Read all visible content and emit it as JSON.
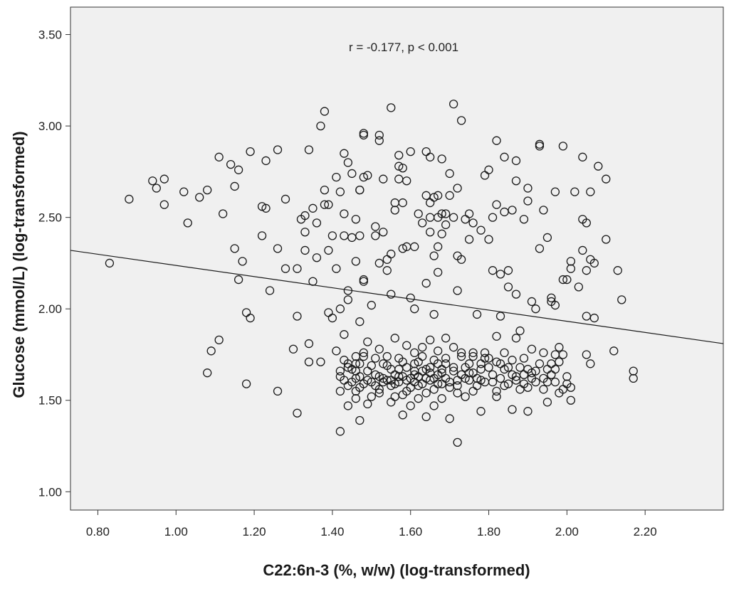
{
  "chart_data": {
    "type": "scatter",
    "xlabel": "C22:6n-3 (%, w/w) (log-transformed)",
    "ylabel": "Glucose (mmol/L) (log-transformed)",
    "annotation": "r = -0.177, p < 0.001",
    "xlim": [
      0.73,
      2.4
    ],
    "ylim": [
      0.9,
      3.65
    ],
    "x_ticks": [
      "0.80",
      "1.00",
      "1.20",
      "1.40",
      "1.60",
      "1.80",
      "2.00",
      "2.20"
    ],
    "y_ticks": [
      "1.00",
      "1.50",
      "2.00",
      "2.50",
      "3.00",
      "3.50"
    ],
    "grid": false,
    "marker": "open-circle",
    "regression_line": {
      "x": [
        0.73,
        2.4
      ],
      "y": [
        2.32,
        1.81
      ]
    },
    "points": [
      [
        0.83,
        2.25
      ],
      [
        0.88,
        2.6
      ],
      [
        0.94,
        2.7
      ],
      [
        0.95,
        2.66
      ],
      [
        0.97,
        2.57
      ],
      [
        0.97,
        2.71
      ],
      [
        1.02,
        2.64
      ],
      [
        1.03,
        2.47
      ],
      [
        1.06,
        2.61
      ],
      [
        1.08,
        2.65
      ],
      [
        1.08,
        1.65
      ],
      [
        1.09,
        1.77
      ],
      [
        1.11,
        1.83
      ],
      [
        1.11,
        2.83
      ],
      [
        1.12,
        2.52
      ],
      [
        1.14,
        2.79
      ],
      [
        1.15,
        2.67
      ],
      [
        1.15,
        2.33
      ],
      [
        1.16,
        2.16
      ],
      [
        1.16,
        2.76
      ],
      [
        1.17,
        2.26
      ],
      [
        1.18,
        1.59
      ],
      [
        1.18,
        1.98
      ],
      [
        1.19,
        1.95
      ],
      [
        1.19,
        2.86
      ],
      [
        1.22,
        2.56
      ],
      [
        1.22,
        2.4
      ],
      [
        1.23,
        2.55
      ],
      [
        1.23,
        2.81
      ],
      [
        1.24,
        2.1
      ],
      [
        1.26,
        2.87
      ],
      [
        1.26,
        2.33
      ],
      [
        1.26,
        1.55
      ],
      [
        1.28,
        2.6
      ],
      [
        1.28,
        2.22
      ],
      [
        1.3,
        1.78
      ],
      [
        1.31,
        1.43
      ],
      [
        1.31,
        1.96
      ],
      [
        1.31,
        2.22
      ],
      [
        1.32,
        2.49
      ],
      [
        1.33,
        2.51
      ],
      [
        1.33,
        2.42
      ],
      [
        1.33,
        2.32
      ],
      [
        1.34,
        2.87
      ],
      [
        1.34,
        1.81
      ],
      [
        1.34,
        1.71
      ],
      [
        1.35,
        2.15
      ],
      [
        1.35,
        2.55
      ],
      [
        1.36,
        2.47
      ],
      [
        1.36,
        2.28
      ],
      [
        1.37,
        3.0
      ],
      [
        1.37,
        1.71
      ],
      [
        1.38,
        3.08
      ],
      [
        1.38,
        2.65
      ],
      [
        1.38,
        2.57
      ],
      [
        1.39,
        2.57
      ],
      [
        1.39,
        2.32
      ],
      [
        1.39,
        1.98
      ],
      [
        1.4,
        1.95
      ],
      [
        1.4,
        2.4
      ],
      [
        1.41,
        2.22
      ],
      [
        1.41,
        2.72
      ],
      [
        1.42,
        2.64
      ],
      [
        1.42,
        2.0
      ],
      [
        1.43,
        2.52
      ],
      [
        1.43,
        2.4
      ],
      [
        1.43,
        2.85
      ],
      [
        1.44,
        2.8
      ],
      [
        1.44,
        2.05
      ],
      [
        1.44,
        2.1
      ],
      [
        1.45,
        2.74
      ],
      [
        1.45,
        2.39
      ],
      [
        1.46,
        2.26
      ],
      [
        1.46,
        2.49
      ],
      [
        1.46,
        1.7
      ],
      [
        1.47,
        2.65
      ],
      [
        1.47,
        2.65
      ],
      [
        1.47,
        2.4
      ],
      [
        1.47,
        1.93
      ],
      [
        1.48,
        2.16
      ],
      [
        1.48,
        2.15
      ],
      [
        1.48,
        2.72
      ],
      [
        1.48,
        2.95
      ],
      [
        1.48,
        2.96
      ],
      [
        1.49,
        2.73
      ],
      [
        1.5,
        2.02
      ],
      [
        1.51,
        2.45
      ],
      [
        1.51,
        2.4
      ],
      [
        1.52,
        2.95
      ],
      [
        1.52,
        2.92
      ],
      [
        1.52,
        2.25
      ],
      [
        1.53,
        2.42
      ],
      [
        1.53,
        2.71
      ],
      [
        1.54,
        2.21
      ],
      [
        1.54,
        2.27
      ],
      [
        1.55,
        2.3
      ],
      [
        1.55,
        2.08
      ],
      [
        1.55,
        3.1
      ],
      [
        1.56,
        2.54
      ],
      [
        1.56,
        2.58
      ],
      [
        1.57,
        2.78
      ],
      [
        1.57,
        2.71
      ],
      [
        1.57,
        2.84
      ],
      [
        1.58,
        2.58
      ],
      [
        1.58,
        2.33
      ],
      [
        1.58,
        2.77
      ],
      [
        1.59,
        2.7
      ],
      [
        1.59,
        2.34
      ],
      [
        1.6,
        2.86
      ],
      [
        1.6,
        2.06
      ],
      [
        1.61,
        2.0
      ],
      [
        1.61,
        2.34
      ],
      [
        1.62,
        2.52
      ],
      [
        1.63,
        2.47
      ],
      [
        1.64,
        2.14
      ],
      [
        1.64,
        2.62
      ],
      [
        1.64,
        2.86
      ],
      [
        1.65,
        2.5
      ],
      [
        1.65,
        2.58
      ],
      [
        1.65,
        2.42
      ],
      [
        1.65,
        2.83
      ],
      [
        1.66,
        2.61
      ],
      [
        1.66,
        2.29
      ],
      [
        1.66,
        1.97
      ],
      [
        1.67,
        2.62
      ],
      [
        1.67,
        2.2
      ],
      [
        1.67,
        2.5
      ],
      [
        1.67,
        2.34
      ],
      [
        1.68,
        2.41
      ],
      [
        1.68,
        2.52
      ],
      [
        1.68,
        2.82
      ],
      [
        1.69,
        2.46
      ],
      [
        1.69,
        2.52
      ],
      [
        1.7,
        2.62
      ],
      [
        1.7,
        2.74
      ],
      [
        1.71,
        2.5
      ],
      [
        1.71,
        3.12
      ],
      [
        1.72,
        2.1
      ],
      [
        1.72,
        2.66
      ],
      [
        1.72,
        2.29
      ],
      [
        1.73,
        2.27
      ],
      [
        1.73,
        3.03
      ],
      [
        1.74,
        2.49
      ],
      [
        1.75,
        2.52
      ],
      [
        1.75,
        2.38
      ],
      [
        1.76,
        2.47
      ],
      [
        1.77,
        1.97
      ],
      [
        1.78,
        2.43
      ],
      [
        1.79,
        2.73
      ],
      [
        1.8,
        2.38
      ],
      [
        1.8,
        2.76
      ],
      [
        1.81,
        2.5
      ],
      [
        1.81,
        2.21
      ],
      [
        1.82,
        2.92
      ],
      [
        1.82,
        2.57
      ],
      [
        1.83,
        1.96
      ],
      [
        1.83,
        2.19
      ],
      [
        1.84,
        2.83
      ],
      [
        1.84,
        2.53
      ],
      [
        1.85,
        2.21
      ],
      [
        1.85,
        2.12
      ],
      [
        1.86,
        2.54
      ],
      [
        1.87,
        2.81
      ],
      [
        1.87,
        2.7
      ],
      [
        1.87,
        2.08
      ],
      [
        1.88,
        1.88
      ],
      [
        1.89,
        2.49
      ],
      [
        1.9,
        2.66
      ],
      [
        1.9,
        2.59
      ],
      [
        1.91,
        2.04
      ],
      [
        1.92,
        2.0
      ],
      [
        1.93,
        2.9
      ],
      [
        1.93,
        2.89
      ],
      [
        1.93,
        2.33
      ],
      [
        1.94,
        2.54
      ],
      [
        1.95,
        2.39
      ],
      [
        1.96,
        2.06
      ],
      [
        1.96,
        2.04
      ],
      [
        1.97,
        2.02
      ],
      [
        1.97,
        2.64
      ],
      [
        1.99,
        2.89
      ],
      [
        1.99,
        2.16
      ],
      [
        2.0,
        2.16
      ],
      [
        2.01,
        2.22
      ],
      [
        2.01,
        2.26
      ],
      [
        2.02,
        2.64
      ],
      [
        2.03,
        2.12
      ],
      [
        2.04,
        2.49
      ],
      [
        2.04,
        2.83
      ],
      [
        2.04,
        2.32
      ],
      [
        2.05,
        2.47
      ],
      [
        2.05,
        2.21
      ],
      [
        2.05,
        1.96
      ],
      [
        2.06,
        2.64
      ],
      [
        2.06,
        2.27
      ],
      [
        2.07,
        2.25
      ],
      [
        2.07,
        1.95
      ],
      [
        2.08,
        2.78
      ],
      [
        2.1,
        2.38
      ],
      [
        2.1,
        2.71
      ],
      [
        2.12,
        1.77
      ],
      [
        2.13,
        2.21
      ],
      [
        2.14,
        2.05
      ],
      [
        2.17,
        1.66
      ],
      [
        2.17,
        1.62
      ],
      [
        2.05,
        1.75
      ],
      [
        2.06,
        1.7
      ],
      [
        2.01,
        1.57
      ],
      [
        2.0,
        1.59
      ],
      [
        1.98,
        1.71
      ],
      [
        1.98,
        1.79
      ],
      [
        1.97,
        1.67
      ],
      [
        1.96,
        1.7
      ],
      [
        1.95,
        1.6
      ],
      [
        1.94,
        1.56
      ],
      [
        1.92,
        1.66
      ],
      [
        1.91,
        1.62
      ],
      [
        1.9,
        1.67
      ],
      [
        1.89,
        1.59
      ],
      [
        1.88,
        1.68
      ],
      [
        1.87,
        1.61
      ],
      [
        1.86,
        1.64
      ],
      [
        1.85,
        1.68
      ],
      [
        1.84,
        1.58
      ],
      [
        1.83,
        1.7
      ],
      [
        1.82,
        1.55
      ],
      [
        1.81,
        1.6
      ],
      [
        1.8,
        1.68
      ],
      [
        1.79,
        1.76
      ],
      [
        1.78,
        1.67
      ],
      [
        1.77,
        1.58
      ],
      [
        1.76,
        1.65
      ],
      [
        1.75,
        1.7
      ],
      [
        1.74,
        1.62
      ],
      [
        1.73,
        1.74
      ],
      [
        1.72,
        1.61
      ],
      [
        1.71,
        1.68
      ],
      [
        1.7,
        1.57
      ],
      [
        1.69,
        1.73
      ],
      [
        1.68,
        1.65
      ],
      [
        1.67,
        1.7
      ],
      [
        1.66,
        1.56
      ],
      [
        1.65,
        1.68
      ],
      [
        1.64,
        1.62
      ],
      [
        1.63,
        1.74
      ],
      [
        1.62,
        1.58
      ],
      [
        1.61,
        1.66
      ],
      [
        1.6,
        1.62
      ],
      [
        1.59,
        1.55
      ],
      [
        1.58,
        1.71
      ],
      [
        1.57,
        1.6
      ],
      [
        1.56,
        1.64
      ],
      [
        1.55,
        1.58
      ],
      [
        1.54,
        1.69
      ],
      [
        1.53,
        1.62
      ],
      [
        1.52,
        1.56
      ],
      [
        1.51,
        1.73
      ],
      [
        1.5,
        1.6
      ],
      [
        1.49,
        1.66
      ],
      [
        1.48,
        1.59
      ],
      [
        1.47,
        1.7
      ],
      [
        1.46,
        1.62
      ],
      [
        1.45,
        1.67
      ],
      [
        1.44,
        1.58
      ],
      [
        1.43,
        1.72
      ],
      [
        1.42,
        1.63
      ],
      [
        1.71,
        1.66
      ],
      [
        1.7,
        1.6
      ],
      [
        1.69,
        1.7
      ],
      [
        1.68,
        1.59
      ],
      [
        1.67,
        1.64
      ],
      [
        1.66,
        1.72
      ],
      [
        1.65,
        1.61
      ],
      [
        1.64,
        1.67
      ],
      [
        1.63,
        1.59
      ],
      [
        1.62,
        1.71
      ],
      [
        1.61,
        1.64
      ],
      [
        1.6,
        1.57
      ],
      [
        1.59,
        1.68
      ],
      [
        1.58,
        1.63
      ],
      [
        1.57,
        1.73
      ],
      [
        1.56,
        1.59
      ],
      [
        1.55,
        1.67
      ],
      [
        1.54,
        1.61
      ],
      [
        1.53,
        1.7
      ],
      [
        1.52,
        1.63
      ],
      [
        1.51,
        1.58
      ],
      [
        1.5,
        1.69
      ],
      [
        1.49,
        1.61
      ],
      [
        1.48,
        1.74
      ],
      [
        1.47,
        1.57
      ],
      [
        1.46,
        1.66
      ],
      [
        1.45,
        1.6
      ],
      [
        1.44,
        1.68
      ],
      [
        1.43,
        1.61
      ],
      [
        1.42,
        1.66
      ],
      [
        1.74,
        1.68
      ],
      [
        1.75,
        1.61
      ],
      [
        1.76,
        1.74
      ],
      [
        1.77,
        1.62
      ],
      [
        1.78,
        1.7
      ],
      [
        1.79,
        1.6
      ],
      [
        1.8,
        1.73
      ],
      [
        1.81,
        1.64
      ],
      [
        1.82,
        1.71
      ],
      [
        1.83,
        1.62
      ],
      [
        1.84,
        1.67
      ],
      [
        1.85,
        1.59
      ],
      [
        1.86,
        1.72
      ],
      [
        1.87,
        1.63
      ],
      [
        1.88,
        1.56
      ],
      [
        1.89,
        1.64
      ],
      [
        1.9,
        1.57
      ],
      [
        1.91,
        1.65
      ],
      [
        1.92,
        1.6
      ],
      [
        1.93,
        1.7
      ],
      [
        1.94,
        1.62
      ],
      [
        1.95,
        1.67
      ],
      [
        1.96,
        1.64
      ],
      [
        1.97,
        1.6
      ],
      [
        1.98,
        1.54
      ],
      [
        1.99,
        1.56
      ],
      [
        2.0,
        1.63
      ],
      [
        2.01,
        1.5
      ],
      [
        1.7,
        1.4
      ],
      [
        1.72,
        1.27
      ],
      [
        1.42,
        1.33
      ],
      [
        1.47,
        1.39
      ],
      [
        1.58,
        1.42
      ],
      [
        1.64,
        1.41
      ],
      [
        1.9,
        1.44
      ],
      [
        1.78,
        1.44
      ],
      [
        1.44,
        1.47
      ],
      [
        1.49,
        1.48
      ],
      [
        1.55,
        1.49
      ],
      [
        1.6,
        1.47
      ],
      [
        1.66,
        1.47
      ],
      [
        1.86,
        1.45
      ],
      [
        1.82,
        1.52
      ],
      [
        1.74,
        1.52
      ],
      [
        1.68,
        1.51
      ],
      [
        1.62,
        1.51
      ],
      [
        1.56,
        1.52
      ],
      [
        1.5,
        1.52
      ],
      [
        1.46,
        1.51
      ],
      [
        1.95,
        1.49
      ],
      [
        1.76,
        1.55
      ],
      [
        1.72,
        1.54
      ],
      [
        1.64,
        1.54
      ],
      [
        1.58,
        1.53
      ],
      [
        1.52,
        1.54
      ],
      [
        1.46,
        1.55
      ],
      [
        1.42,
        1.55
      ],
      [
        1.41,
        1.77
      ],
      [
        1.43,
        1.86
      ],
      [
        1.44,
        1.7
      ],
      [
        1.46,
        1.74
      ],
      [
        1.48,
        1.76
      ],
      [
        1.49,
        1.82
      ],
      [
        1.52,
        1.78
      ],
      [
        1.54,
        1.74
      ],
      [
        1.56,
        1.84
      ],
      [
        1.59,
        1.8
      ],
      [
        1.61,
        1.76
      ],
      [
        1.63,
        1.79
      ],
      [
        1.65,
        1.83
      ],
      [
        1.67,
        1.77
      ],
      [
        1.69,
        1.84
      ],
      [
        1.71,
        1.79
      ],
      [
        1.73,
        1.76
      ],
      [
        1.76,
        1.76
      ],
      [
        1.79,
        1.73
      ],
      [
        1.82,
        1.85
      ],
      [
        1.84,
        1.76
      ],
      [
        1.87,
        1.84
      ],
      [
        1.89,
        1.73
      ],
      [
        1.91,
        1.78
      ],
      [
        1.94,
        1.76
      ],
      [
        1.97,
        1.75
      ],
      [
        1.99,
        1.75
      ],
      [
        1.53,
        1.6
      ],
      [
        1.57,
        1.63
      ],
      [
        1.61,
        1.6
      ],
      [
        1.65,
        1.65
      ],
      [
        1.69,
        1.62
      ],
      [
        1.73,
        1.64
      ],
      [
        1.61,
        1.7
      ],
      [
        1.63,
        1.66
      ],
      [
        1.66,
        1.62
      ],
      [
        1.68,
        1.67
      ],
      [
        1.59,
        1.61
      ],
      [
        1.55,
        1.61
      ],
      [
        1.51,
        1.64
      ],
      [
        1.47,
        1.63
      ],
      [
        1.72,
        1.58
      ],
      [
        1.75,
        1.65
      ],
      [
        1.78,
        1.61
      ],
      [
        1.67,
        1.59
      ],
      [
        1.62,
        1.63
      ],
      [
        1.57,
        1.67
      ]
    ]
  }
}
